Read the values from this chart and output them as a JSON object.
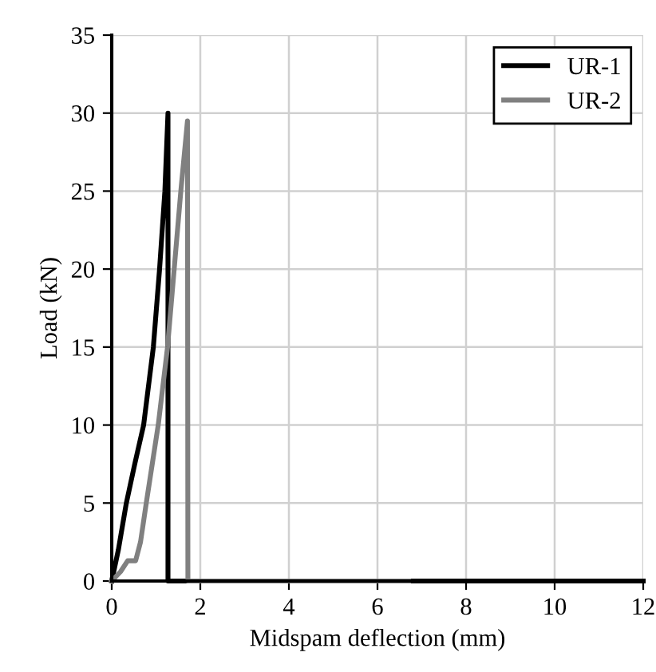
{
  "chart_data": {
    "type": "line",
    "xlabel": "Midspam deflection (mm)",
    "ylabel": "Load (kN)",
    "xlim": [
      0,
      12
    ],
    "ylim": [
      0,
      35
    ],
    "xticks": [
      0,
      2,
      4,
      6,
      8,
      10,
      12
    ],
    "yticks": [
      0,
      5,
      10,
      15,
      20,
      25,
      30,
      35
    ],
    "grid": true,
    "legend": "top right",
    "marker": "none",
    "line_style": "solid",
    "series": [
      {
        "name": "UR-1",
        "color": "#000000",
        "x": [
          0,
          0.15,
          0.33,
          0.52,
          0.72,
          0.94,
          1.08,
          1.2,
          1.27,
          1.27,
          1.4,
          12
        ],
        "values": [
          0,
          2,
          5,
          7.5,
          10,
          15,
          20,
          25,
          30,
          0,
          0,
          0
        ]
      },
      {
        "name": "UR-2",
        "color": "#808080",
        "x": [
          0,
          0.2,
          0.36,
          0.54,
          0.65,
          0.78,
          1.05,
          1.26,
          1.41,
          1.56,
          1.71,
          1.72,
          3,
          6.7
        ],
        "values": [
          0,
          0.6,
          1.3,
          1.3,
          2.5,
          5,
          10,
          15,
          20,
          25,
          29.5,
          0,
          0,
          0
        ]
      }
    ]
  }
}
